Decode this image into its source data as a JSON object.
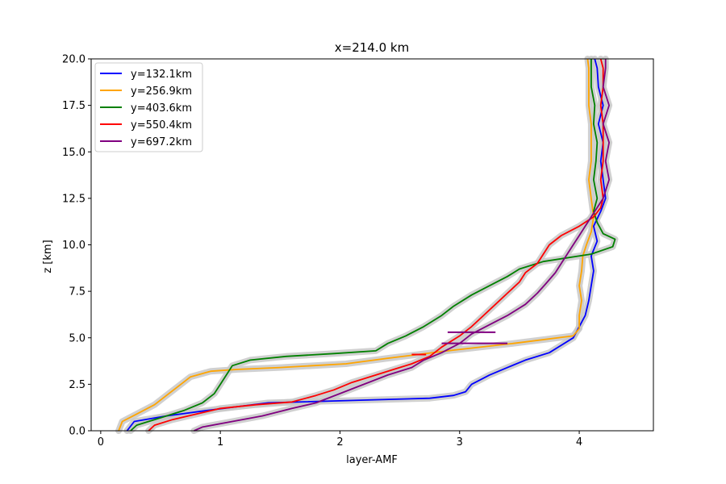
{
  "chart_data": {
    "type": "line",
    "title": "x=214.0 km",
    "xlabel": "layer-AMF",
    "ylabel": "z [km]",
    "xlim": [
      -0.08,
      4.62
    ],
    "ylim": [
      0,
      20
    ],
    "x_ticks": [
      0,
      1,
      2,
      3,
      4
    ],
    "x_tick_labels": [
      "0",
      "1",
      "2",
      "3",
      "4"
    ],
    "y_ticks": [
      0,
      2.5,
      5,
      7.5,
      10,
      12.5,
      15,
      17.5,
      20
    ],
    "y_tick_labels": [
      "0.0",
      "2.5",
      "5.0",
      "7.5",
      "10.0",
      "12.5",
      "15.0",
      "17.5",
      "20.0"
    ],
    "grid": false,
    "legend_position": "top-left",
    "uncertainty_band_color": "#c8c8c8",
    "series": [
      {
        "name": "y=132.1km",
        "color": "#0000ff",
        "points": [
          [
            0.22,
            0.0
          ],
          [
            0.28,
            0.5
          ],
          [
            0.55,
            0.8
          ],
          [
            0.9,
            1.1
          ],
          [
            1.4,
            1.5
          ],
          [
            2.2,
            1.65
          ],
          [
            2.75,
            1.75
          ],
          [
            2.95,
            1.9
          ],
          [
            3.05,
            2.1
          ],
          [
            3.1,
            2.5
          ],
          [
            3.25,
            3.0
          ],
          [
            3.4,
            3.4
          ],
          [
            3.55,
            3.8
          ],
          [
            3.75,
            4.2
          ],
          [
            3.85,
            4.6
          ],
          [
            3.95,
            5.0
          ],
          [
            4.0,
            5.6
          ],
          [
            4.05,
            6.2
          ],
          [
            4.08,
            7.0
          ],
          [
            4.1,
            7.8
          ],
          [
            4.12,
            8.6
          ],
          [
            4.1,
            9.4
          ],
          [
            4.15,
            10.2
          ],
          [
            4.12,
            11.0
          ],
          [
            4.18,
            11.8
          ],
          [
            4.22,
            12.5
          ],
          [
            4.2,
            13.5
          ],
          [
            4.18,
            14.5
          ],
          [
            4.2,
            15.5
          ],
          [
            4.16,
            16.5
          ],
          [
            4.2,
            17.5
          ],
          [
            4.16,
            18.5
          ],
          [
            4.15,
            19.5
          ],
          [
            4.13,
            20.0
          ]
        ]
      },
      {
        "name": "y=256.9km",
        "color": "#ffa500",
        "points": [
          [
            0.15,
            0.0
          ],
          [
            0.18,
            0.5
          ],
          [
            0.3,
            0.9
          ],
          [
            0.45,
            1.4
          ],
          [
            0.55,
            1.9
          ],
          [
            0.65,
            2.4
          ],
          [
            0.75,
            2.9
          ],
          [
            0.92,
            3.2
          ],
          [
            1.15,
            3.3
          ],
          [
            1.5,
            3.4
          ],
          [
            2.05,
            3.6
          ],
          [
            2.4,
            3.9
          ],
          [
            2.9,
            4.3
          ],
          [
            3.45,
            4.7
          ],
          [
            3.95,
            5.1
          ],
          [
            4.0,
            5.5
          ],
          [
            4.0,
            6.2
          ],
          [
            4.02,
            7.0
          ],
          [
            4.0,
            7.8
          ],
          [
            4.02,
            8.6
          ],
          [
            4.03,
            9.4
          ],
          [
            4.06,
            10.0
          ],
          [
            4.1,
            10.7
          ],
          [
            4.12,
            11.5
          ],
          [
            4.1,
            12.5
          ],
          [
            4.08,
            13.5
          ],
          [
            4.1,
            14.5
          ],
          [
            4.1,
            15.5
          ],
          [
            4.1,
            16.5
          ],
          [
            4.08,
            17.5
          ],
          [
            4.08,
            18.5
          ],
          [
            4.08,
            19.5
          ],
          [
            4.07,
            20.0
          ]
        ]
      },
      {
        "name": "y=403.6km",
        "color": "#008000",
        "points": [
          [
            0.25,
            0.0
          ],
          [
            0.3,
            0.3
          ],
          [
            0.4,
            0.5
          ],
          [
            0.55,
            0.8
          ],
          [
            0.7,
            1.1
          ],
          [
            0.85,
            1.5
          ],
          [
            0.95,
            2.0
          ],
          [
            1.0,
            2.5
          ],
          [
            1.05,
            3.0
          ],
          [
            1.1,
            3.5
          ],
          [
            1.25,
            3.8
          ],
          [
            1.55,
            4.0
          ],
          [
            1.95,
            4.15
          ],
          [
            2.3,
            4.3
          ],
          [
            2.4,
            4.7
          ],
          [
            2.55,
            5.1
          ],
          [
            2.7,
            5.6
          ],
          [
            2.85,
            6.2
          ],
          [
            2.95,
            6.7
          ],
          [
            3.1,
            7.3
          ],
          [
            3.25,
            7.8
          ],
          [
            3.4,
            8.3
          ],
          [
            3.5,
            8.7
          ],
          [
            3.7,
            9.1
          ],
          [
            4.1,
            9.5
          ],
          [
            4.28,
            9.9
          ],
          [
            4.3,
            10.3
          ],
          [
            4.2,
            10.6
          ],
          [
            4.15,
            11.2
          ],
          [
            4.12,
            11.8
          ],
          [
            4.15,
            12.5
          ],
          [
            4.12,
            13.5
          ],
          [
            4.14,
            14.5
          ],
          [
            4.15,
            15.5
          ],
          [
            4.12,
            16.5
          ],
          [
            4.13,
            17.5
          ],
          [
            4.1,
            18.5
          ],
          [
            4.1,
            19.5
          ],
          [
            4.1,
            20.0
          ]
        ]
      },
      {
        "name": "y=550.4km",
        "color": "#ff0000",
        "points": [
          [
            0.4,
            0.0
          ],
          [
            0.45,
            0.3
          ],
          [
            0.6,
            0.6
          ],
          [
            0.8,
            0.9
          ],
          [
            1.0,
            1.2
          ],
          [
            1.3,
            1.4
          ],
          [
            1.6,
            1.55
          ],
          [
            1.8,
            1.9
          ],
          [
            1.95,
            2.2
          ],
          [
            2.1,
            2.6
          ],
          [
            2.3,
            3.0
          ],
          [
            2.45,
            3.3
          ],
          [
            2.6,
            3.6
          ],
          [
            2.75,
            4.0
          ],
          [
            2.85,
            4.5
          ],
          [
            3.0,
            5.1
          ],
          [
            3.1,
            5.6
          ],
          [
            3.2,
            6.2
          ],
          [
            3.3,
            6.8
          ],
          [
            3.4,
            7.4
          ],
          [
            3.5,
            8.0
          ],
          [
            3.55,
            8.5
          ],
          [
            3.65,
            9.0
          ],
          [
            3.7,
            9.5
          ],
          [
            3.75,
            10.0
          ],
          [
            3.85,
            10.5
          ],
          [
            4.0,
            11.0
          ],
          [
            4.12,
            11.5
          ],
          [
            4.18,
            12.0
          ],
          [
            4.2,
            12.5
          ],
          [
            4.18,
            13.5
          ],
          [
            4.2,
            14.5
          ],
          [
            4.2,
            15.5
          ],
          [
            4.2,
            16.5
          ],
          [
            4.18,
            17.5
          ],
          [
            4.2,
            18.5
          ],
          [
            4.2,
            19.5
          ],
          [
            4.18,
            20.0
          ]
        ]
      },
      {
        "name": "y=697.2km",
        "color": "#800080",
        "points": [
          [
            0.78,
            0.0
          ],
          [
            0.85,
            0.2
          ],
          [
            1.1,
            0.5
          ],
          [
            1.35,
            0.8
          ],
          [
            1.6,
            1.2
          ],
          [
            1.8,
            1.5
          ],
          [
            2.0,
            2.0
          ],
          [
            2.2,
            2.5
          ],
          [
            2.4,
            3.0
          ],
          [
            2.6,
            3.4
          ],
          [
            2.7,
            3.8
          ],
          [
            2.85,
            4.2
          ],
          [
            3.0,
            4.7
          ],
          [
            3.1,
            5.2
          ],
          [
            3.25,
            5.7
          ],
          [
            3.4,
            6.2
          ],
          [
            3.55,
            6.8
          ],
          [
            3.65,
            7.4
          ],
          [
            3.72,
            7.9
          ],
          [
            3.8,
            8.5
          ],
          [
            3.85,
            9.0
          ],
          [
            3.9,
            9.5
          ],
          [
            3.95,
            10.0
          ],
          [
            4.0,
            10.5
          ],
          [
            4.05,
            11.0
          ],
          [
            4.1,
            11.5
          ],
          [
            4.15,
            12.0
          ],
          [
            4.2,
            12.5
          ],
          [
            4.25,
            13.5
          ],
          [
            4.22,
            14.5
          ],
          [
            4.25,
            15.5
          ],
          [
            4.2,
            16.5
          ],
          [
            4.25,
            17.5
          ],
          [
            4.2,
            18.5
          ],
          [
            4.22,
            19.5
          ],
          [
            4.22,
            20.0
          ]
        ]
      }
    ],
    "horizontal_segments": [
      {
        "series": "y=697.2km",
        "x_start": 2.9,
        "x_end": 3.3,
        "y": 5.3
      },
      {
        "series": "y=697.2km",
        "x_start": 2.85,
        "x_end": 3.4,
        "y": 4.7
      },
      {
        "series": "y=550.4km",
        "x_start": 2.6,
        "x_end": 2.72,
        "y": 4.1
      }
    ]
  }
}
